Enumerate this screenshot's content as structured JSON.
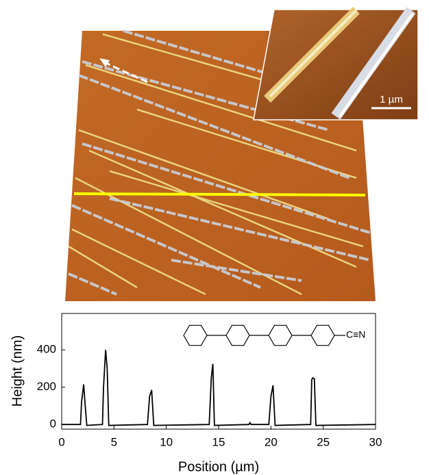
{
  "chart_data": {
    "type": "line",
    "image_annotations": {
      "scale_bar": "1 µm",
      "group": "C≡N"
    },
    "xlabel": "Position (µm)",
    "ylabel": "Height (nm)",
    "xlim": [
      0,
      30
    ],
    "xticks": [
      0,
      5,
      10,
      15,
      20,
      25,
      30
    ],
    "ylim": [
      -25,
      595
    ],
    "yticks": [
      0,
      200,
      400
    ],
    "series": [
      {
        "color": "#000000",
        "x": [
          0,
          1.8,
          1.9,
          2.1,
          2.25,
          2.4,
          3.9,
          4.0,
          4.2,
          4.35,
          4.5,
          8.2,
          8.4,
          8.6,
          8.8,
          14.1,
          14.3,
          14.45,
          14.6,
          17.9,
          18.0,
          18.1,
          19.8,
          20.0,
          20.2,
          20.4,
          23.8,
          23.9,
          24.0,
          24.15,
          24.3,
          30
        ],
        "values": [
          0,
          0,
          120,
          215,
          100,
          -5,
          0,
          200,
          400,
          300,
          -5,
          0,
          150,
          185,
          -5,
          0,
          250,
          325,
          -5,
          0,
          10,
          0,
          0,
          150,
          210,
          -5,
          0,
          240,
          250,
          245,
          -5,
          0
        ]
      }
    ]
  }
}
